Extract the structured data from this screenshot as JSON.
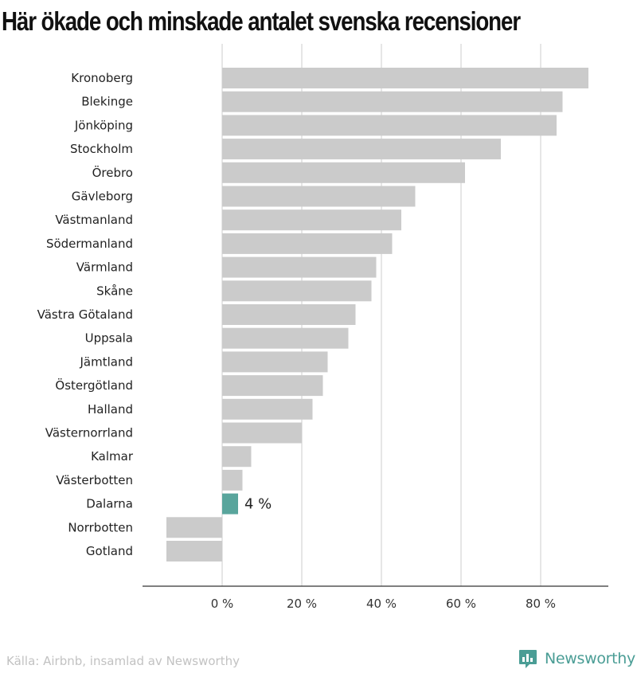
{
  "title": "Här ökade och minskade antalet svenska recensioner",
  "source": "Källa: Airbnb, insamlad av Newsworthy",
  "brand": "Newsworthy",
  "colors": {
    "bar": "#cbcbcb",
    "highlight": "#59a59c",
    "grid": "#dddddd",
    "brand": "#4a9d95"
  },
  "chart_data": {
    "type": "bar",
    "orientation": "horizontal",
    "title": "Här ökade och minskade antalet svenska recensioner",
    "categories": [
      "Kronoberg",
      "Blekinge",
      "Jönköping",
      "Stockholm",
      "Örebro",
      "Gävleborg",
      "Västmanland",
      "Södermanland",
      "Värmland",
      "Skåne",
      "Västra Götaland",
      "Uppsala",
      "Jämtland",
      "Östergötland",
      "Halland",
      "Västernorrland",
      "Kalmar",
      "Västerbotten",
      "Dalarna",
      "Norrbotten",
      "Gotland"
    ],
    "values": [
      92,
      85.5,
      84,
      70,
      61,
      48.5,
      45,
      42.7,
      38.7,
      37.5,
      33.5,
      31.7,
      26.5,
      25.3,
      22.7,
      20,
      7.3,
      5.1,
      4,
      -14,
      -14
    ],
    "highlight": "Dalarna",
    "highlight_label": "4 %",
    "xlim": [
      -20,
      97
    ],
    "xticks": [
      0,
      20,
      40,
      60,
      80
    ],
    "xtick_labels": [
      "0 %",
      "20 %",
      "40 %",
      "60 %",
      "80 %"
    ],
    "grid": true
  }
}
